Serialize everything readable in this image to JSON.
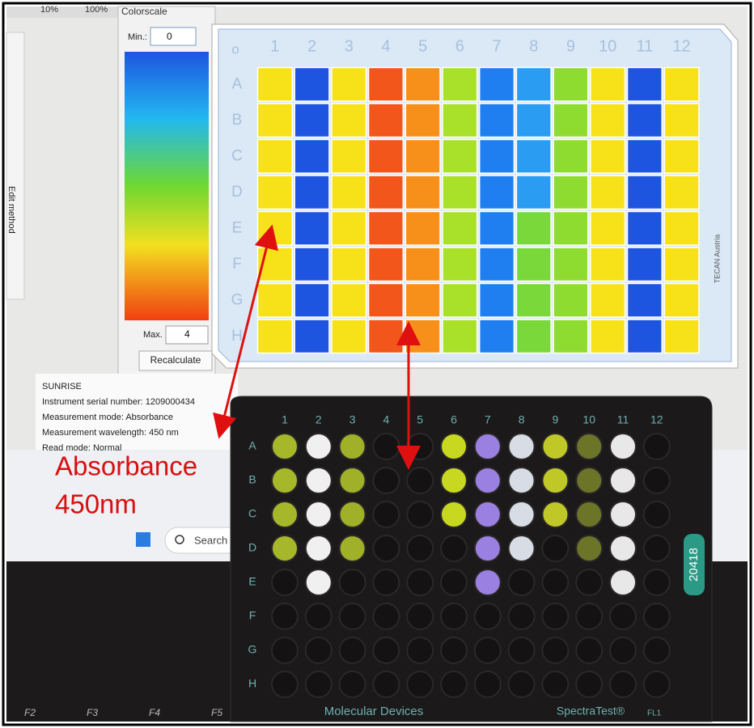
{
  "toolbar": [
    "10%",
    "100%"
  ],
  "colorscale": {
    "title": "Colorscale",
    "min_label": "Min.:",
    "min": 0,
    "max_label": "Max.",
    "max": 4,
    "button": "Recalculate"
  },
  "side_tab": "Edit method",
  "plate": {
    "corner": "o",
    "columns": [
      "1",
      "2",
      "3",
      "4",
      "5",
      "6",
      "7",
      "8",
      "9",
      "10",
      "11",
      "12"
    ],
    "rows": [
      "A",
      "B",
      "C",
      "D",
      "E",
      "F",
      "G",
      "H"
    ],
    "vendor": "TECAN Austria",
    "well_colors": [
      [
        "#f7e21a",
        "#1d55e0",
        "#f7e21a",
        "#f2561a",
        "#f7901a",
        "#a8e02a",
        "#1f7ff0",
        "#2a9cf2",
        "#8fdc30",
        "#f7e21a",
        "#1d55e0",
        "#f7e21a"
      ],
      [
        "#f7e21a",
        "#1d55e0",
        "#f7e21a",
        "#f2561a",
        "#f7901a",
        "#a8e02a",
        "#1f7ff0",
        "#2a9cf2",
        "#8fdc30",
        "#f7e21a",
        "#1d55e0",
        "#f7e21a"
      ],
      [
        "#f7e21a",
        "#1d55e0",
        "#f7e21a",
        "#f2561a",
        "#f7901a",
        "#a8e02a",
        "#1f7ff0",
        "#2a9cf2",
        "#8fdc30",
        "#f7e21a",
        "#1d55e0",
        "#f7e21a"
      ],
      [
        "#f7e21a",
        "#1d55e0",
        "#f7e21a",
        "#f2561a",
        "#f7901a",
        "#a8e02a",
        "#1f7ff0",
        "#2a9cf2",
        "#8fdc30",
        "#f7e21a",
        "#1d55e0",
        "#f7e21a"
      ],
      [
        "#f7e21a",
        "#1d55e0",
        "#f7e21a",
        "#f2561a",
        "#f7901a",
        "#a8e02a",
        "#1f7ff0",
        "#7ad83a",
        "#8fdc30",
        "#f7e21a",
        "#1d55e0",
        "#f7e21a"
      ],
      [
        "#f7e21a",
        "#1d55e0",
        "#f7e21a",
        "#f2561a",
        "#f7901a",
        "#a8e02a",
        "#1f7ff0",
        "#7ad83a",
        "#8fdc30",
        "#f7e21a",
        "#1d55e0",
        "#f7e21a"
      ],
      [
        "#f7e21a",
        "#1d55e0",
        "#f7e21a",
        "#f2561a",
        "#f7901a",
        "#a8e02a",
        "#1f7ff0",
        "#7ad83a",
        "#8fdc30",
        "#f7e21a",
        "#1d55e0",
        "#f7e21a"
      ],
      [
        "#f7e21a",
        "#1d55e0",
        "#f7e21a",
        "#f2561a",
        "#f7901a",
        "#a8e02a",
        "#1f7ff0",
        "#7ad83a",
        "#8fdc30",
        "#f7e21a",
        "#1d55e0",
        "#f7e21a"
      ]
    ]
  },
  "info": [
    "SUNRISE",
    "Instrument serial number: 1209000434",
    "Measurement mode: Absorbance",
    "Measurement wavelength: 450 nm",
    "Read mode: Normal"
  ],
  "annotation": [
    "Absorbance",
    "450nm"
  ],
  "taskbar": {
    "search": "Search"
  },
  "physical_plate": {
    "columns": [
      "1",
      "2",
      "3",
      "4",
      "5",
      "6",
      "7",
      "8",
      "9",
      "10",
      "11",
      "12"
    ],
    "rows": [
      "A",
      "B",
      "C",
      "D",
      "E",
      "F",
      "G",
      "H"
    ],
    "barcode": "20418",
    "brand": "Molecular Devices",
    "model": "SpectraTest®",
    "model_suffix": "FL1"
  },
  "keys": [
    "F2",
    "F3",
    "F4",
    "F5"
  ]
}
